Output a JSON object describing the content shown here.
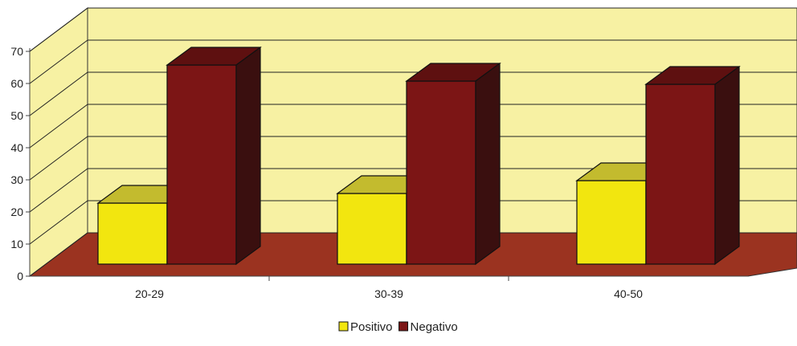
{
  "chart_data": {
    "type": "bar",
    "title": "",
    "xlabel": "",
    "ylabel": "",
    "ylim": [
      0,
      70
    ],
    "yticks": [
      "0",
      "10",
      "20",
      "30",
      "40",
      "50",
      "60",
      "70"
    ],
    "categories": [
      "20-29",
      "30-39",
      "40-50"
    ],
    "series": [
      {
        "name": "Positivo",
        "values": [
          19,
          22,
          26
        ]
      },
      {
        "name": "Negativo",
        "values": [
          62,
          57,
          56
        ]
      }
    ],
    "legend_position": "bottom",
    "grid": true,
    "style_3d": true,
    "colors": {
      "wall": "#f7f1a3",
      "floor": "#9b3320",
      "positivo_front": "#f2e60f",
      "positivo_top": "#c3bb2e",
      "positivo_side": "#6f6b18",
      "negativo_front": "#7c1515",
      "negativo_top": "#5e1010",
      "negativo_side": "#3a0f0f"
    }
  }
}
